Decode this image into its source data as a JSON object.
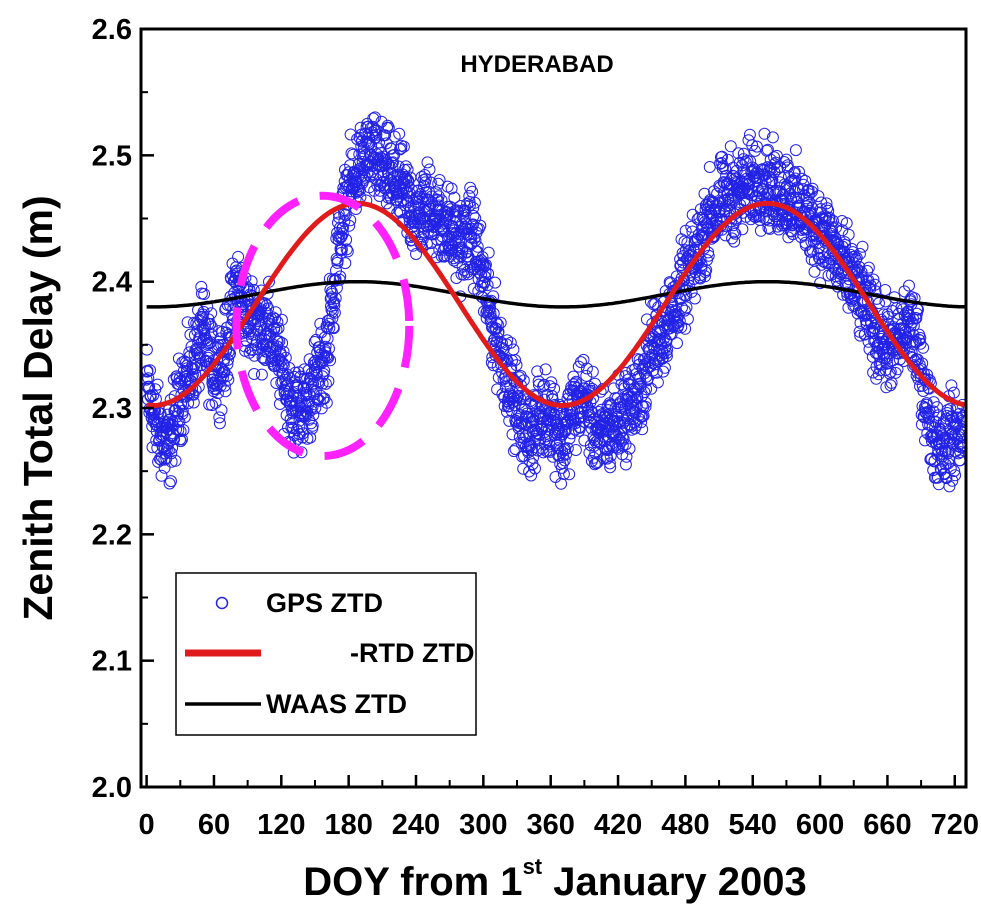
{
  "chart_data": {
    "type": "scatter",
    "title": "HYDERABAD",
    "ylabel": "Zenith Total Delay (m)",
    "xlabel": {
      "prefix": "DOY from 1",
      "superscript": "st",
      "suffix": " January 2003"
    },
    "xlim": [
      -5,
      730
    ],
    "ylim": [
      2.0,
      2.6
    ],
    "x_ticks": [
      0,
      60,
      120,
      180,
      240,
      300,
      360,
      420,
      480,
      540,
      600,
      660,
      720
    ],
    "y_ticks": [
      2.0,
      2.1,
      2.2,
      2.3,
      2.4,
      2.5,
      2.6
    ],
    "y_tick_labels": [
      "2.0",
      "2.1",
      "2.2",
      "2.3",
      "2.4",
      "2.5",
      "2.6"
    ],
    "legend": {
      "position": "lower-left",
      "entries": [
        "GPS ZTD",
        "-RTD ZTD",
        "WAAS ZTD"
      ]
    },
    "series": [
      {
        "name": "GPS ZTD",
        "kind": "scatter",
        "marker": "open-circle",
        "color": "#2323e6",
        "description_points": [
          [
            0,
            2.32
          ],
          [
            10,
            2.28
          ],
          [
            20,
            2.27
          ],
          [
            30,
            2.31
          ],
          [
            40,
            2.33
          ],
          [
            50,
            2.36
          ],
          [
            60,
            2.33
          ],
          [
            70,
            2.34
          ],
          [
            80,
            2.4
          ],
          [
            90,
            2.37
          ],
          [
            100,
            2.37
          ],
          [
            110,
            2.36
          ],
          [
            120,
            2.33
          ],
          [
            130,
            2.3
          ],
          [
            140,
            2.3
          ],
          [
            150,
            2.32
          ],
          [
            160,
            2.34
          ],
          [
            170,
            2.42
          ],
          [
            180,
            2.47
          ],
          [
            190,
            2.49
          ],
          [
            200,
            2.5
          ],
          [
            210,
            2.49
          ],
          [
            220,
            2.48
          ],
          [
            230,
            2.47
          ],
          [
            240,
            2.45
          ],
          [
            250,
            2.46
          ],
          [
            260,
            2.45
          ],
          [
            270,
            2.44
          ],
          [
            280,
            2.43
          ],
          [
            290,
            2.44
          ],
          [
            300,
            2.4
          ],
          [
            310,
            2.36
          ],
          [
            320,
            2.33
          ],
          [
            330,
            2.3
          ],
          [
            340,
            2.28
          ],
          [
            350,
            2.29
          ],
          [
            360,
            2.3
          ],
          [
            370,
            2.27
          ],
          [
            380,
            2.3
          ],
          [
            390,
            2.31
          ],
          [
            400,
            2.28
          ],
          [
            410,
            2.28
          ],
          [
            420,
            2.29
          ],
          [
            430,
            2.3
          ],
          [
            440,
            2.31
          ],
          [
            450,
            2.35
          ],
          [
            460,
            2.36
          ],
          [
            470,
            2.38
          ],
          [
            480,
            2.4
          ],
          [
            490,
            2.42
          ],
          [
            500,
            2.45
          ],
          [
            510,
            2.46
          ],
          [
            520,
            2.47
          ],
          [
            530,
            2.47
          ],
          [
            540,
            2.48
          ],
          [
            550,
            2.48
          ],
          [
            560,
            2.47
          ],
          [
            570,
            2.47
          ],
          [
            580,
            2.46
          ],
          [
            590,
            2.45
          ],
          [
            600,
            2.44
          ],
          [
            610,
            2.43
          ],
          [
            620,
            2.41
          ],
          [
            630,
            2.4
          ],
          [
            640,
            2.38
          ],
          [
            650,
            2.36
          ],
          [
            660,
            2.35
          ],
          [
            670,
            2.35
          ],
          [
            680,
            2.37
          ],
          [
            690,
            2.33
          ],
          [
            700,
            2.28
          ],
          [
            710,
            2.27
          ],
          [
            720,
            2.28
          ],
          [
            728,
            2.28
          ]
        ],
        "spread": 0.035,
        "samples_per_day": 4
      },
      {
        "name": "-RTD ZTD",
        "kind": "line",
        "color": "#e11b1b",
        "model": "cosine",
        "mean": 2.382,
        "amplitude": 0.08,
        "period_days": 365,
        "peak_day": 188
      },
      {
        "name": "WAAS ZTD",
        "kind": "line",
        "color": "#000000",
        "model": "cosine",
        "mean": 2.39,
        "amplitude": 0.01,
        "period_days": 365,
        "peak_day": 188
      }
    ],
    "annotations": [
      {
        "kind": "dashed-ellipse",
        "color": "#ff22ff",
        "center_x": 157,
        "center_y": 2.365,
        "x_radius": 77,
        "y_radius": 0.103
      }
    ]
  }
}
